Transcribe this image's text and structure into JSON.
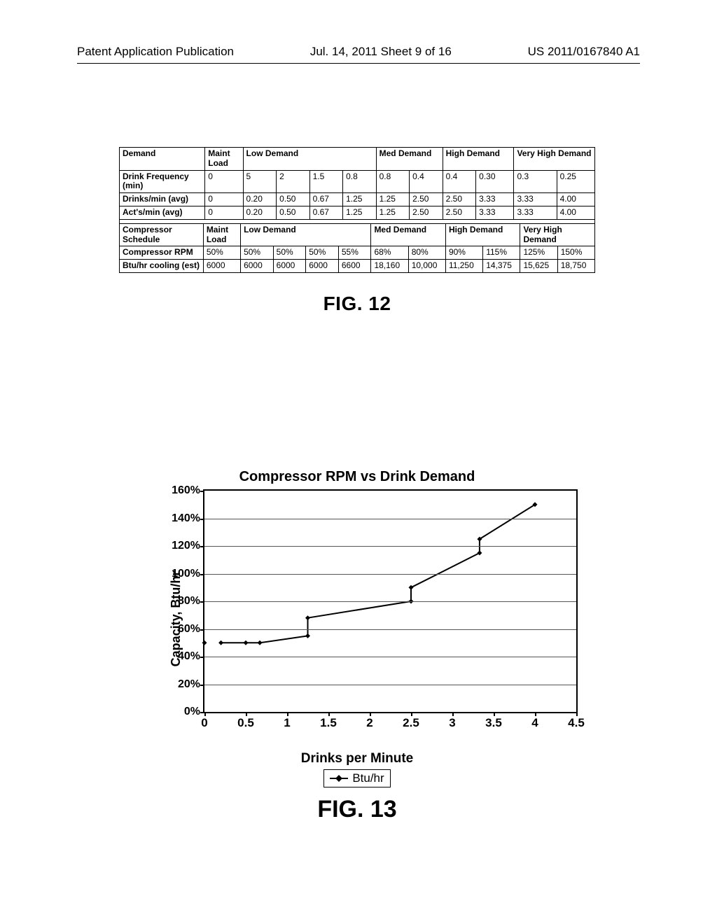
{
  "header": {
    "left": "Patent Application Publication",
    "center": "Jul. 14, 2011  Sheet 9 of 16",
    "right": "US 2011/0167840 A1"
  },
  "table1": {
    "header_groups": [
      {
        "label": "Demand",
        "span": 1
      },
      {
        "label": "Maint Load",
        "span": 1
      },
      {
        "label": "Low Demand",
        "span": 4
      },
      {
        "label": "Med Demand",
        "span": 2
      },
      {
        "label": "High Demand",
        "span": 2
      },
      {
        "label": "Very High Demand",
        "span": 2
      }
    ],
    "rows": [
      {
        "label": "Drink Frequency (min)",
        "cells": [
          "0",
          "5",
          "2",
          "1.5",
          "0.8",
          "0.8",
          "0.4",
          "0.4",
          "0.30",
          "0.3",
          "0.25"
        ]
      },
      {
        "label": "Drinks/min (avg)",
        "cells": [
          "0",
          "0.20",
          "0.50",
          "0.67",
          "1.25",
          "1.25",
          "2.50",
          "2.50",
          "3.33",
          "3.33",
          "4.00"
        ]
      },
      {
        "label": "Act's/min (avg)",
        "cells": [
          "0",
          "0.20",
          "0.50",
          "0.67",
          "1.25",
          "1.25",
          "2.50",
          "2.50",
          "3.33",
          "3.33",
          "4.00"
        ]
      }
    ]
  },
  "table2": {
    "header_groups": [
      {
        "label": "Compressor Schedule",
        "span": 1
      },
      {
        "label": "Maint Load",
        "span": 1
      },
      {
        "label": "Low Demand",
        "span": 4
      },
      {
        "label": "Med Demand",
        "span": 2
      },
      {
        "label": "High Demand",
        "span": 2
      },
      {
        "label": "Very High Demand",
        "span": 2
      }
    ],
    "rows": [
      {
        "label": "Compressor RPM",
        "cells": [
          "50%",
          "50%",
          "50%",
          "50%",
          "55%",
          "68%",
          "80%",
          "90%",
          "115%",
          "125%",
          "150%"
        ]
      },
      {
        "label": "Btu/hr cooling (est)",
        "cells": [
          "6000",
          "6000",
          "6000",
          "6000",
          "6600",
          "18,160",
          "10,000",
          "11,250",
          "14,375",
          "15,625",
          "18,750"
        ]
      }
    ]
  },
  "fig12_label": "FIG.  12",
  "chart": {
    "title": "Compressor RPM vs Drink Demand",
    "ylabel": "Capacity, Btu/hr",
    "xlabel": "Drinks per Minute",
    "legend": "Btu/hr",
    "xlim": [
      0,
      4.5
    ],
    "ylim": [
      0,
      160
    ],
    "xticks": [
      0,
      0.5,
      1,
      1.5,
      2,
      2.5,
      3,
      3.5,
      4,
      4.5
    ],
    "yticks": [
      0,
      20,
      40,
      60,
      80,
      100,
      120,
      140,
      160
    ],
    "ytick_labels": [
      "0%",
      "20%",
      "40%",
      "60%",
      "80%",
      "100%",
      "120%",
      "140%",
      "160%"
    ],
    "series": {
      "name": "Btu/hr",
      "color": "#000000",
      "marker": "diamond",
      "marker_size": 7,
      "line_width": 2,
      "points": [
        [
          0.2,
          50
        ],
        [
          0.5,
          50
        ],
        [
          0.67,
          50
        ],
        [
          1.25,
          55
        ],
        [
          1.25,
          68
        ],
        [
          2.5,
          80
        ],
        [
          2.5,
          90
        ],
        [
          3.33,
          115
        ],
        [
          3.33,
          125
        ],
        [
          4.0,
          150
        ]
      ],
      "marker_only_points": [
        [
          0.0,
          50
        ]
      ]
    },
    "grid_color": "#555555",
    "background_color": "#ffffff"
  },
  "fig13_label": "FIG.  13"
}
